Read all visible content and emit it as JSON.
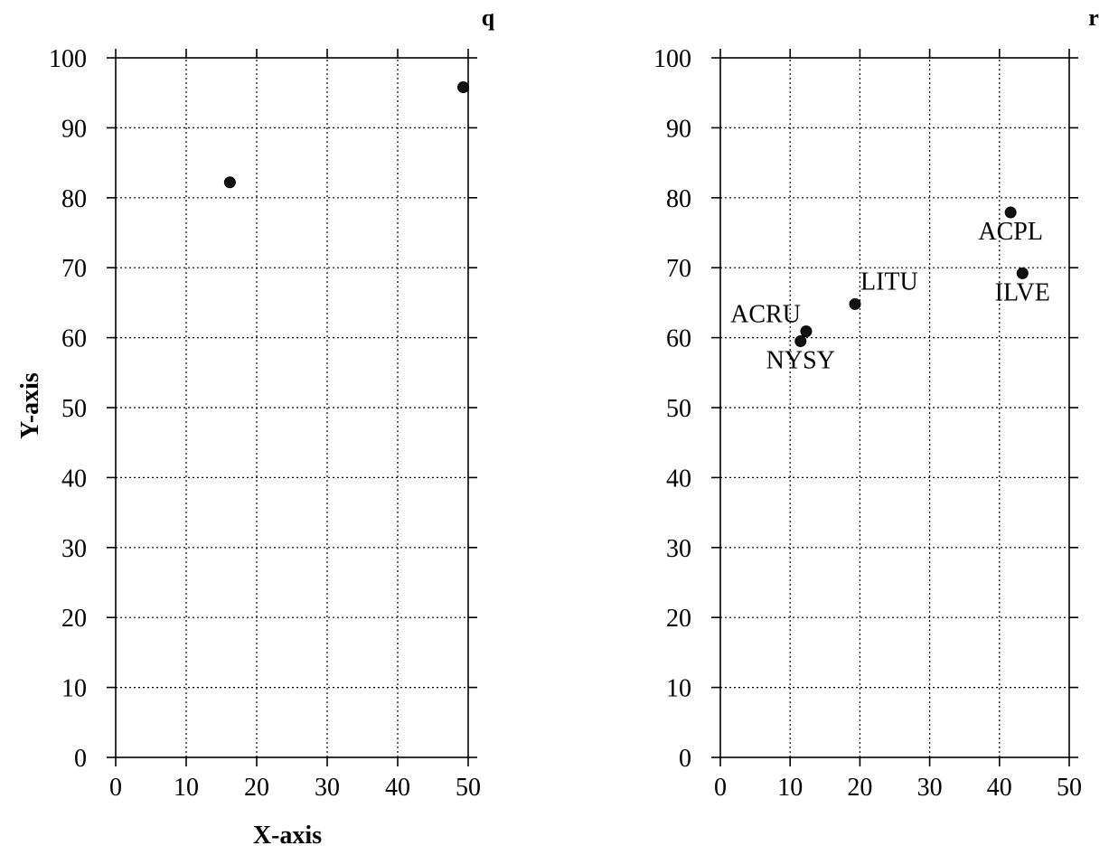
{
  "chart_data": [
    {
      "type": "scatter",
      "panel_label": "q",
      "xlabel": "X-axis",
      "ylabel": "Y-axis",
      "xlim": [
        0,
        50
      ],
      "ylim": [
        0,
        100
      ],
      "xticks": [
        0,
        10,
        20,
        30,
        40,
        50
      ],
      "yticks": [
        0,
        10,
        20,
        30,
        40,
        50,
        60,
        70,
        80,
        90,
        100
      ],
      "grid": true,
      "points": [
        {
          "x": 16.2,
          "y": 82.2,
          "label": ""
        },
        {
          "x": 49.3,
          "y": 95.8,
          "label": ""
        }
      ]
    },
    {
      "type": "scatter",
      "panel_label": "r",
      "xlabel": "",
      "ylabel": "",
      "xlim": [
        0,
        50
      ],
      "ylim": [
        0,
        100
      ],
      "xticks": [
        0,
        10,
        20,
        30,
        40,
        50
      ],
      "yticks": [
        0,
        10,
        20,
        30,
        40,
        50,
        60,
        70,
        80,
        90,
        100
      ],
      "grid": true,
      "points": [
        {
          "x": 12.3,
          "y": 60.9,
          "label": "ACRU",
          "label_pos": "left"
        },
        {
          "x": 11.5,
          "y": 59.5,
          "label": "NYSY",
          "label_pos": "below"
        },
        {
          "x": 19.3,
          "y": 64.8,
          "label": "LITU",
          "label_pos": "right"
        },
        {
          "x": 41.6,
          "y": 77.9,
          "label": "ACPL",
          "label_pos": "below"
        },
        {
          "x": 43.3,
          "y": 69.2,
          "label": "ILVE",
          "label_pos": "below"
        }
      ]
    }
  ]
}
